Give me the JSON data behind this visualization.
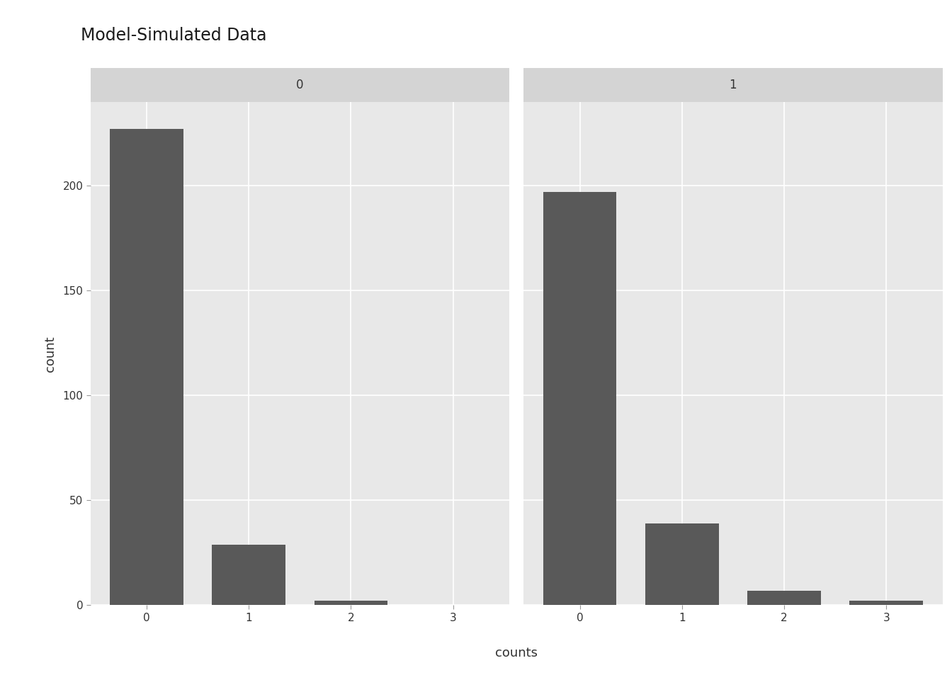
{
  "title": "Model-Simulated Data",
  "xlabel": "counts",
  "ylabel": "count",
  "outer_bg_color": "#ffffff",
  "panel_bg_color": "#e8e8e8",
  "strip_bg_color": "#d4d4d4",
  "bar_color": "#595959",
  "panels": [
    {
      "label": "0",
      "x_values": [
        0,
        1,
        2,
        3
      ],
      "y_values": [
        227,
        29,
        2,
        0
      ]
    },
    {
      "label": "1",
      "x_values": [
        0,
        1,
        2,
        3
      ],
      "y_values": [
        197,
        39,
        7,
        2
      ]
    }
  ],
  "ylim": [
    0,
    240
  ],
  "yticks": [
    0,
    50,
    100,
    150,
    200
  ],
  "xticks": [
    0,
    1,
    2,
    3
  ],
  "title_fontsize": 17,
  "axis_label_fontsize": 13,
  "tick_fontsize": 11,
  "strip_fontsize": 12,
  "grid_color": "#ffffff",
  "grid_linewidth": 1.2
}
